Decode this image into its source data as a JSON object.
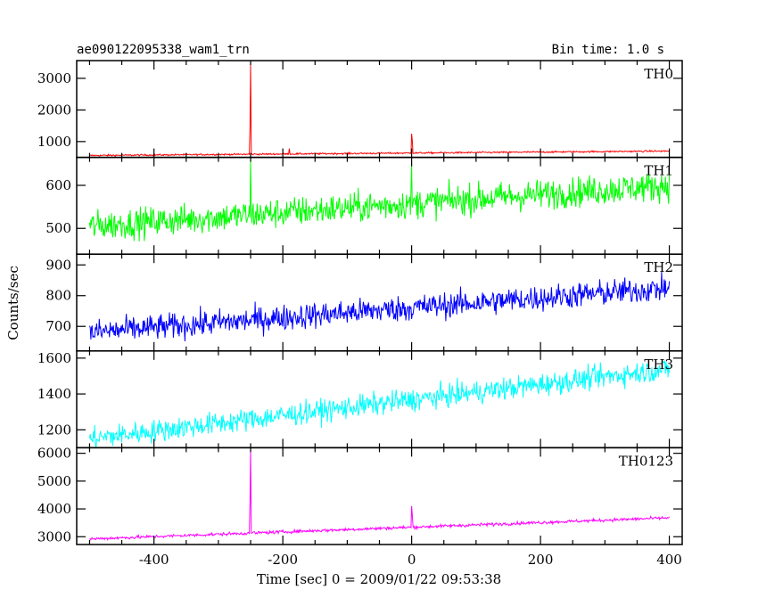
{
  "chart_data": {
    "type": "line",
    "title": "ae090122095338_wam1_trn",
    "subtitle": "Bin time: 1.0 s",
    "xlabel": "Time [sec] 0 = 2009/01/22 09:53:38",
    "ylabel": "Counts/sec",
    "xlim": [
      -520,
      420
    ],
    "xticks": [
      -400,
      -200,
      0,
      200,
      400
    ],
    "grid": false,
    "panels": [
      {
        "name": "TH0",
        "color": "#ff0000",
        "ylim": [
          500,
          3560
        ],
        "yticks": [
          1000,
          2000,
          3000
        ],
        "x": [
          -500,
          400
        ],
        "y": [
          560,
          700
        ],
        "noise": 18,
        "spikes": [
          {
            "x": -250,
            "y": 3450
          },
          {
            "x": -251,
            "y": 1450
          },
          {
            "x": 0,
            "y": 1250
          },
          {
            "x": 1,
            "y": 1050
          },
          {
            "x": -190,
            "y": 780
          }
        ]
      },
      {
        "name": "TH1",
        "color": "#00ff00",
        "ylim": [
          440,
          665
        ],
        "yticks": [
          500,
          600
        ],
        "x": [
          -500,
          400
        ],
        "y": [
          505,
          600
        ],
        "noise": 25,
        "spikes": [
          {
            "x": -250,
            "y": 660
          },
          {
            "x": 0,
            "y": 650
          }
        ]
      },
      {
        "name": "TH2",
        "color": "#0000ff",
        "ylim": [
          620,
          935
        ],
        "yticks": [
          700,
          800,
          900
        ],
        "x": [
          -500,
          400
        ],
        "y": [
          680,
          825
        ],
        "noise": 30,
        "spikes": []
      },
      {
        "name": "TH3",
        "color": "#00ffff",
        "ylim": [
          1100,
          1640
        ],
        "yticks": [
          1200,
          1400,
          1600
        ],
        "x": [
          -500,
          400
        ],
        "y": [
          1150,
          1540
        ],
        "noise": 45,
        "spikes": []
      },
      {
        "name": "TH0123",
        "color": "#ff00ff",
        "ylim": [
          2720,
          6200
        ],
        "yticks": [
          3000,
          4000,
          5000,
          6000
        ],
        "x": [
          -500,
          400
        ],
        "y": [
          2920,
          3680
        ],
        "noise": 40,
        "spikes": [
          {
            "x": -250,
            "y": 6100
          },
          {
            "x": -251,
            "y": 4300
          },
          {
            "x": 0,
            "y": 4100
          },
          {
            "x": 1,
            "y": 3800
          }
        ]
      }
    ]
  }
}
